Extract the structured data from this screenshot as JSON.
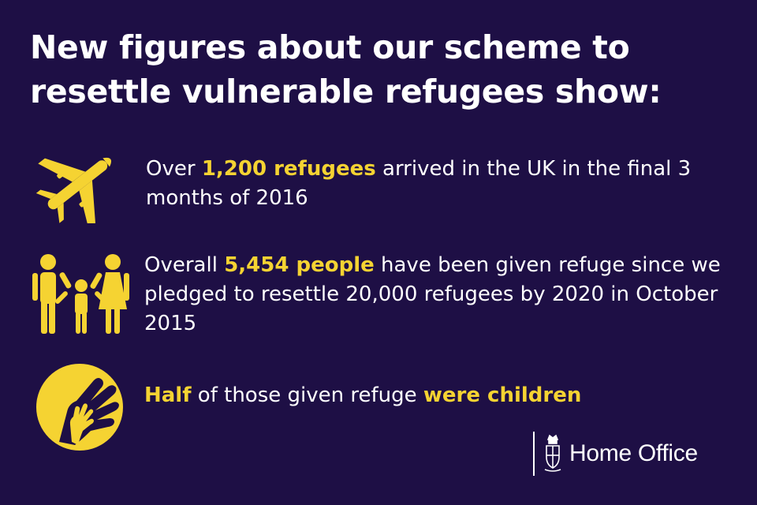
{
  "title": {
    "line1": "New figures about our scheme to",
    "line2": "resettle vulnerable refugees show:"
  },
  "facts": [
    {
      "icon": "airplane-icon",
      "pre": "Over ",
      "highlight1": "1,200 refugees",
      "mid": " arrived in the UK in the final 3 months of 2016"
    },
    {
      "icon": "family-icon",
      "pre": "Overall ",
      "highlight1": "5,454 people",
      "mid": " have been given refuge since we pledged to resettle 20,000 refugees by 2020 in October 2015"
    },
    {
      "icon": "hands-icon",
      "highlight1": "Half",
      "mid": " of those given refuge ",
      "highlight2": "were children"
    }
  ],
  "logo": {
    "text": "Home Office",
    "icon": "royal-crest-icon"
  },
  "colors": {
    "background": "#1e0f45",
    "accent": "#f5d332",
    "text": "#ffffff"
  }
}
